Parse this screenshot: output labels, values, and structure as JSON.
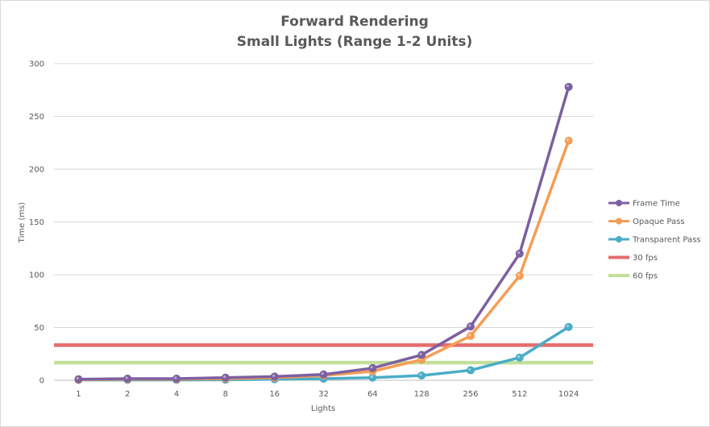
{
  "chart_data": {
    "type": "line",
    "title": "Forward Rendering",
    "subtitle": "Small Lights (Range 1-2 Units)",
    "xlabel": "Lights",
    "ylabel": "Time (ms)",
    "categories": [
      "1",
      "2",
      "4",
      "8",
      "16",
      "32",
      "64",
      "128",
      "256",
      "512",
      "1024"
    ],
    "ylim": [
      0,
      300
    ],
    "yticks": [
      0,
      50,
      100,
      150,
      200,
      250,
      300
    ],
    "grid": true,
    "legend_position": "right",
    "series": [
      {
        "name": "Frame Time",
        "color": "#7d60a0",
        "marker": true,
        "values": [
          1,
          1.5,
          1.5,
          2.5,
          3.5,
          5.5,
          11.5,
          24,
          51,
          120,
          278
        ]
      },
      {
        "name": "Opaque Pass",
        "color": "#f59d56",
        "marker": true,
        "values": [
          0.5,
          1,
          1,
          1.5,
          2.5,
          4.5,
          8.5,
          19.5,
          42,
          99,
          227
        ]
      },
      {
        "name": "Transparent Pass",
        "color": "#4bacc6",
        "marker": true,
        "values": [
          0.3,
          0.3,
          0.3,
          0.5,
          1,
          1.5,
          2.5,
          4.5,
          9.5,
          21.5,
          50.5
        ]
      },
      {
        "name": "30 fps",
        "color": "#e46c6c",
        "marker": false,
        "constant": 33.3
      },
      {
        "name": "60 fps",
        "color": "#c3df9b",
        "marker": false,
        "constant": 16.7
      }
    ]
  }
}
